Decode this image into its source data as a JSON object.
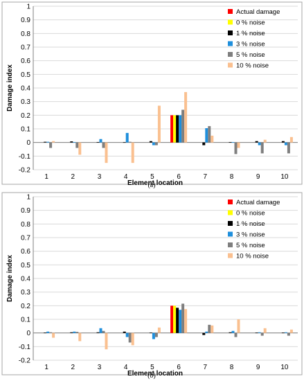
{
  "colors": {
    "series": [
      "#ff0000",
      "#ffff00",
      "#000000",
      "#1f8fdc",
      "#7f7f7f",
      "#fac090"
    ],
    "grid": "#d9d9d9",
    "border": "#a6a6a6"
  },
  "chart_data": [
    {
      "type": "bar",
      "caption": "(a)",
      "xlabel": "Element location",
      "ylabel": "Damage index",
      "ylim": [
        -0.2,
        1
      ],
      "yticks": [
        "-0.2",
        "-0.1",
        "0",
        "0.1",
        "0.2",
        "0.3",
        "0.4",
        "0.5",
        "0.6",
        "0.7",
        "0.8",
        "0.9",
        "1"
      ],
      "grid": true,
      "legend_position": "top-right",
      "categories": [
        "1",
        "2",
        "3",
        "4",
        "5",
        "6",
        "7",
        "8",
        "9",
        "10"
      ],
      "series": [
        {
          "name": "Actual damage",
          "values": [
            0,
            0,
            0,
            0,
            0,
            0.2,
            0,
            0,
            0,
            0
          ]
        },
        {
          "name": "0 % noise",
          "values": [
            0,
            0,
            0,
            0,
            0,
            0.2,
            0,
            0,
            0,
            0
          ]
        },
        {
          "name": "1 % noise",
          "values": [
            0.005,
            0.008,
            0.003,
            0.002,
            0.01,
            0.2,
            -0.02,
            0.003,
            0.01,
            0.01
          ]
        },
        {
          "name": "3 % noise",
          "values": [
            0.005,
            0.003,
            0.025,
            0.07,
            -0.02,
            0.2,
            0.105,
            0.003,
            -0.02,
            -0.02
          ]
        },
        {
          "name": "5 % noise",
          "values": [
            -0.04,
            -0.04,
            -0.04,
            0.005,
            -0.02,
            0.24,
            0.12,
            -0.085,
            -0.08,
            -0.08
          ]
        },
        {
          "name": "10 % noise",
          "values": [
            0.01,
            -0.09,
            -0.15,
            -0.15,
            0.27,
            0.37,
            0.05,
            -0.04,
            0.02,
            0.04
          ]
        }
      ]
    },
    {
      "type": "bar",
      "caption": "(b)",
      "xlabel": "Element location",
      "ylabel": "Damage index",
      "ylim": [
        -0.2,
        1
      ],
      "yticks": [
        "-0.2",
        "-0.1",
        "0",
        "0.1",
        "0.2",
        "0.3",
        "0.4",
        "0.5",
        "0.6",
        "0.7",
        "0.8",
        "0.9",
        "1"
      ],
      "grid": true,
      "legend_position": "top-right",
      "categories": [
        "1",
        "2",
        "3",
        "4",
        "5",
        "6",
        "7",
        "8",
        "9",
        "10"
      ],
      "series": [
        {
          "name": "Actual damage",
          "values": [
            0,
            0,
            0,
            0,
            0,
            0.2,
            0,
            0,
            0,
            0
          ]
        },
        {
          "name": "0 % noise",
          "values": [
            0,
            0,
            0,
            0,
            0,
            0.2,
            0,
            0,
            0,
            0
          ]
        },
        {
          "name": "1 % noise",
          "values": [
            0.003,
            0.005,
            0.005,
            0.01,
            0.003,
            0.185,
            -0.015,
            0.005,
            0.003,
            0.003
          ]
        },
        {
          "name": "3 % noise",
          "values": [
            0.01,
            0.01,
            0.035,
            -0.03,
            -0.045,
            0.17,
            0.01,
            0.015,
            0.005,
            0.005
          ]
        },
        {
          "name": "5 % noise",
          "values": [
            0.005,
            0.008,
            0.015,
            -0.07,
            -0.03,
            0.215,
            0.06,
            -0.03,
            -0.02,
            -0.02
          ]
        },
        {
          "name": "10 % noise",
          "values": [
            -0.035,
            -0.06,
            -0.12,
            -0.09,
            0.04,
            0.175,
            0.055,
            0.1,
            0.035,
            0.025
          ]
        }
      ]
    }
  ]
}
